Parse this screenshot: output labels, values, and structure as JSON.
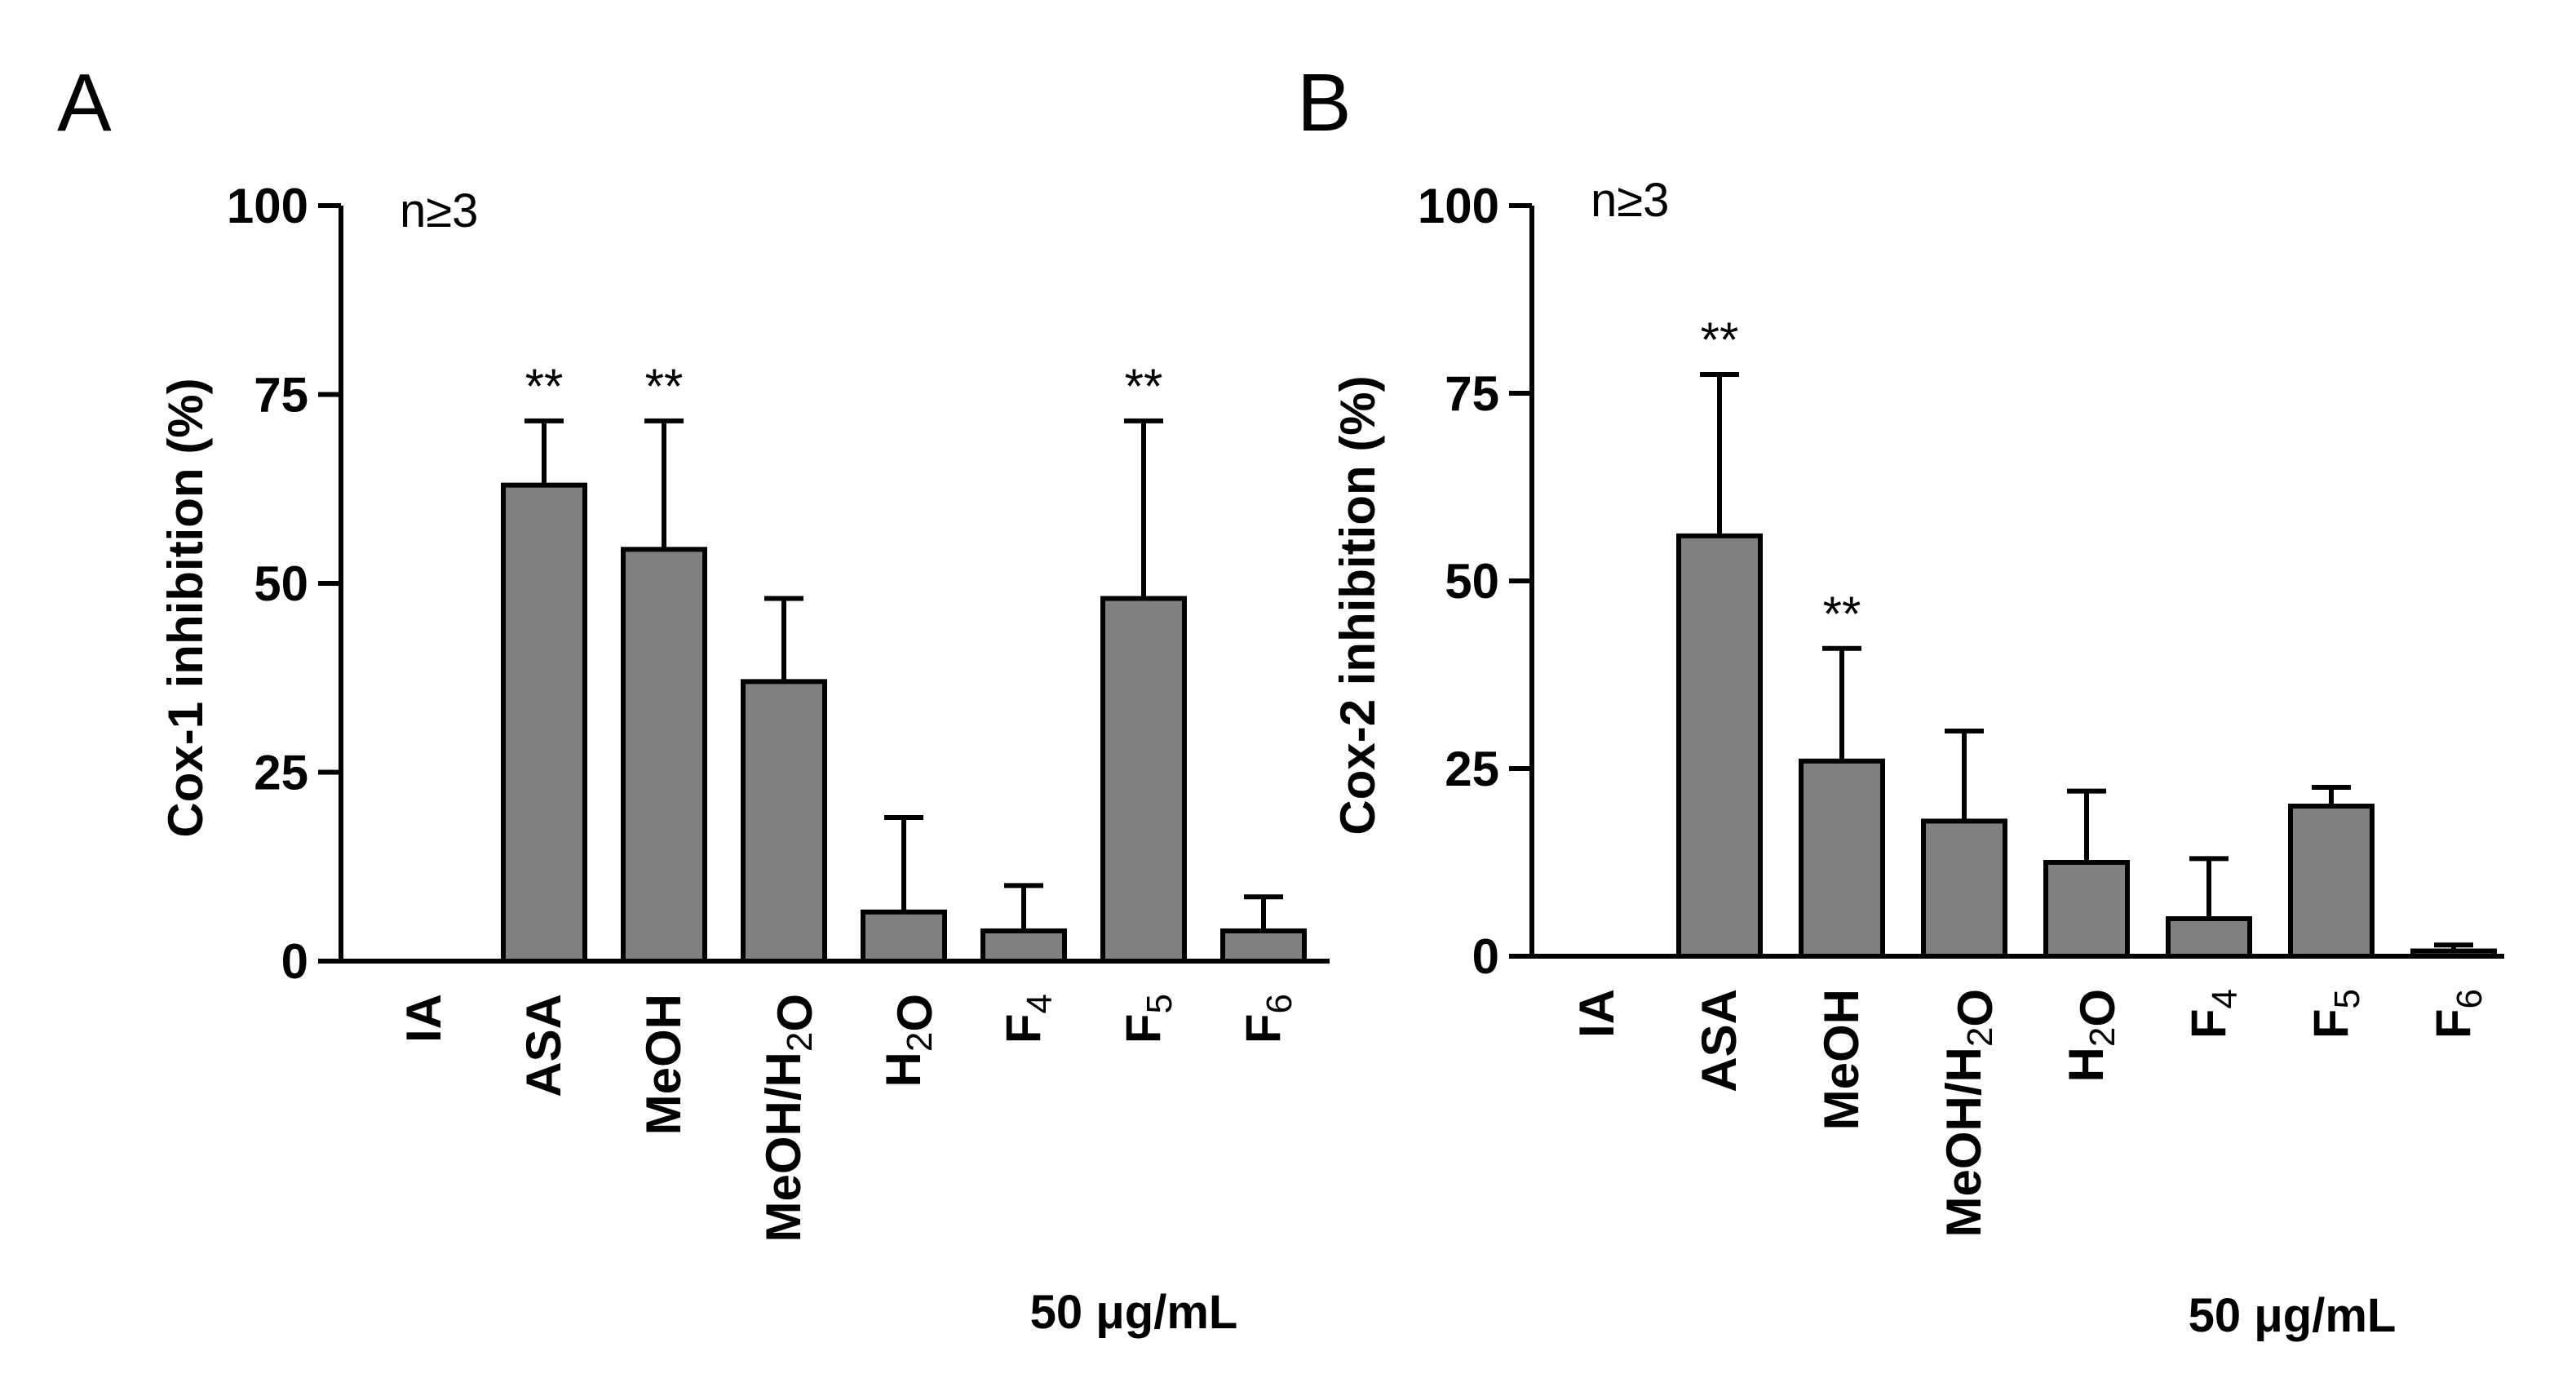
{
  "chart_data": [
    {
      "type": "bar",
      "panel": "A",
      "note": "n≥3",
      "concentration_label": "50 μg/mL",
      "ylabel": "Cox-1 inhibition (%)",
      "xlabel": "",
      "ylim": [
        0,
        100
      ],
      "yticks": [
        "0",
        "25",
        "50",
        "75",
        "100"
      ],
      "categories": [
        "IA",
        "ASA",
        "MeOH",
        "MeOH/H2O",
        "H2O",
        "F4",
        "F5",
        "F6"
      ],
      "values": [
        0,
        63,
        54.5,
        37,
        6.5,
        4,
        48,
        4
      ],
      "errors": [
        0,
        8.5,
        17,
        11,
        12.5,
        6,
        23.5,
        4.5
      ],
      "significance": [
        "",
        "**",
        "**",
        "",
        "",
        "",
        "**",
        ""
      ],
      "bar_color": "#808080"
    },
    {
      "type": "bar",
      "panel": "B",
      "note": "n≥3",
      "concentration_label": "50 μg/mL",
      "ylabel": "Cox-2 inhibition (%)",
      "xlabel": "",
      "ylim": [
        0,
        100
      ],
      "yticks": [
        "0",
        "25",
        "50",
        "75",
        "100"
      ],
      "categories": [
        "IA",
        "ASA",
        "MeOH",
        "MeOH/H2O",
        "H2O",
        "F4",
        "F5",
        "F6"
      ],
      "values": [
        0,
        56,
        26,
        18,
        12.5,
        5,
        20,
        0.7
      ],
      "errors": [
        0,
        21.5,
        15,
        12,
        9.5,
        8,
        2.5,
        0.8
      ],
      "significance": [
        "",
        "**",
        "**",
        "",
        "",
        "",
        "",
        ""
      ],
      "bar_color": "#808080"
    }
  ]
}
